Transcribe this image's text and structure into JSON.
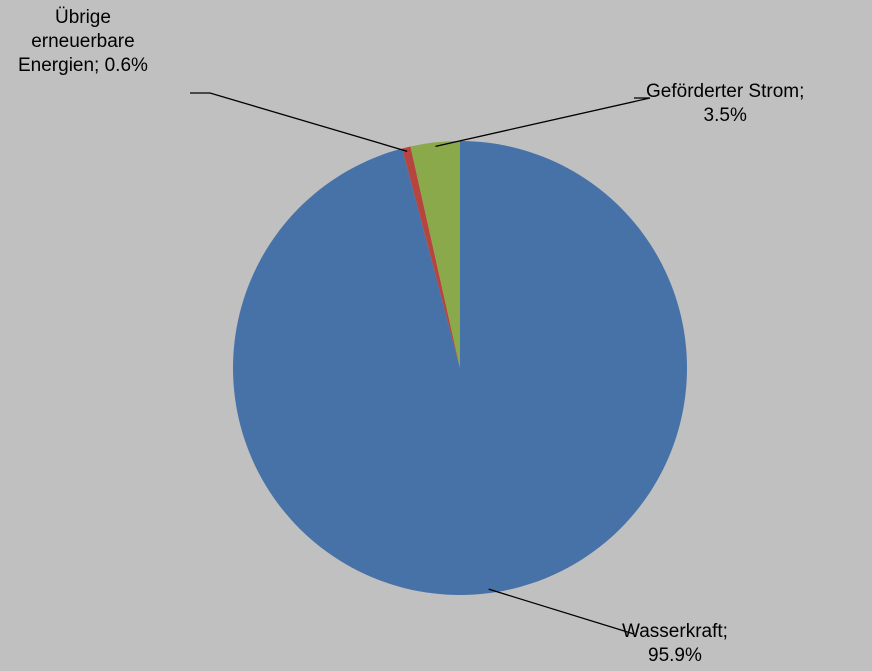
{
  "chart_data": {
    "type": "pie",
    "start_angle_deg": 0,
    "direction": "clockwise",
    "slices": [
      {
        "name": "Wasserkraft",
        "value": 95.9,
        "label_lines": [
          "Wasserkraft;",
          "95.9%"
        ],
        "color": "#4672a8"
      },
      {
        "name": "Übrige erneuerbare Energien",
        "value": 0.6,
        "label_lines": [
          "Übrige",
          "erneuerbare",
          "Energien; 0.6%"
        ],
        "color": "#b7453f"
      },
      {
        "name": "Geförderter Strom",
        "value": 3.5,
        "label_lines": [
          "Geförderter Strom;",
          "3.5%"
        ],
        "color": "#8aa94b"
      }
    ],
    "legend": "none",
    "data_labels": "category; percent"
  },
  "background_color": "#c0c0c0"
}
